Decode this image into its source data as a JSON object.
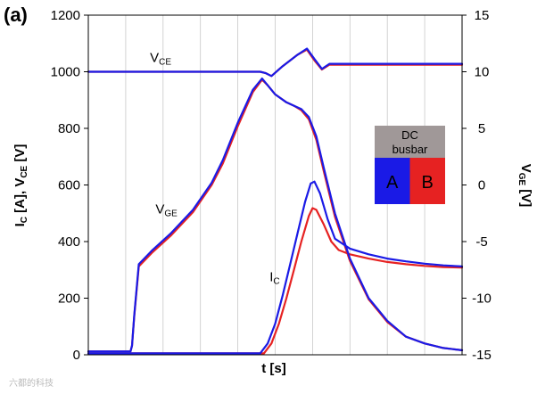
{
  "panel_label": "(a)",
  "watermark": "六都的科技",
  "chart_data": {
    "type": "line",
    "xlabel": "t [s]",
    "ylabel_left": {
      "main": "I",
      "sub1": "C",
      "mid": " [A], V",
      "sub2": "CE",
      "end": " [V]"
    },
    "ylabel_right": {
      "main": "V",
      "sub": "GE",
      "end": " [V]"
    },
    "ylim_left": [
      0,
      1200
    ],
    "ylim_right": [
      -15,
      15
    ],
    "xlim": [
      0,
      100
    ],
    "yticks_left": [
      "0",
      "200",
      "400",
      "600",
      "800",
      "1000",
      "1200"
    ],
    "yticks_right": [
      "-15",
      "-10",
      "-5",
      "0",
      "5",
      "10",
      "15"
    ],
    "grid": "vertical",
    "annotations": [
      {
        "main": "V",
        "sub": "CE",
        "x": 16.5,
        "y": 1035
      },
      {
        "main": "V",
        "sub": "GE",
        "x": 18,
        "y": 500
      },
      {
        "main": "I",
        "sub": "C",
        "x": 48.5,
        "y": 260
      }
    ],
    "legend": {
      "title_line1": "DC",
      "title_line2": "busbar",
      "a": "A",
      "b": "B",
      "position": "right"
    },
    "series": [
      {
        "name": "A",
        "quantity": "VCE",
        "color": "#1a1ae6",
        "x": [
          0,
          46,
          47.5,
          49,
          52,
          56,
          58.5,
          60.5,
          62.5,
          64.5,
          100
        ],
        "y": [
          1000,
          1000,
          995,
          985,
          1020,
          1060,
          1082,
          1045,
          1010,
          1028,
          1028
        ]
      },
      {
        "name": "B",
        "quantity": "VCE",
        "color": "#e62222",
        "x": [
          0,
          46,
          47.5,
          49,
          52,
          56,
          58.5,
          60.5,
          62.5,
          64.5,
          100
        ],
        "y": [
          1000,
          1000,
          995,
          985,
          1020,
          1060,
          1078,
          1040,
          1008,
          1025,
          1025
        ]
      },
      {
        "name": "A",
        "quantity": "VGE",
        "color": "#1a1ae6",
        "x": [
          0,
          11.3,
          11.7,
          12.3,
          13.5,
          17,
          22,
          28,
          33,
          36,
          40,
          44,
          46.5,
          48,
          50,
          53,
          55,
          57,
          59,
          61,
          63,
          66,
          70,
          75,
          80,
          85,
          90,
          95,
          100
        ],
        "y": [
          -14.7,
          -14.7,
          -14.2,
          -11.5,
          -7,
          -5.8,
          -4.3,
          -2.2,
          0.2,
          2.2,
          5.5,
          8.4,
          9.4,
          8.8,
          8.0,
          7.3,
          7.0,
          6.7,
          6.0,
          4.3,
          1.5,
          -2.5,
          -6.5,
          -10.0,
          -12.0,
          -13.4,
          -14.0,
          -14.4,
          -14.6
        ]
      },
      {
        "name": "B",
        "quantity": "VGE",
        "color": "#e62222",
        "x": [
          0,
          11.3,
          11.7,
          12.3,
          13.5,
          17,
          22,
          28,
          33,
          36,
          40,
          44,
          46.5,
          48,
          50,
          53,
          55,
          57,
          59,
          61,
          63,
          66,
          70,
          75,
          80,
          85,
          90,
          95,
          100
        ],
        "y": [
          -14.7,
          -14.7,
          -14.2,
          -11.6,
          -7.2,
          -6.0,
          -4.5,
          -2.4,
          0.0,
          1.9,
          5.2,
          8.2,
          9.3,
          8.8,
          8.0,
          7.3,
          7.0,
          6.6,
          5.8,
          4.0,
          1.2,
          -2.8,
          -6.7,
          -10.1,
          -12.1,
          -13.4,
          -14.0,
          -14.4,
          -14.6
        ]
      },
      {
        "name": "A",
        "quantity": "IC",
        "color": "#1a1ae6",
        "x": [
          0,
          46,
          48,
          50,
          52,
          54,
          56,
          58,
          59.5,
          60.5,
          62,
          64,
          66,
          70,
          75,
          80,
          85,
          90,
          95,
          100
        ],
        "y": [
          5,
          5,
          40,
          110,
          210,
          320,
          430,
          540,
          605,
          612,
          570,
          480,
          410,
          375,
          355,
          340,
          330,
          322,
          316,
          312
        ]
      },
      {
        "name": "B",
        "quantity": "IC",
        "color": "#e62222",
        "x": [
          0,
          47,
          49,
          51,
          53,
          55,
          57,
          59,
          60,
          61,
          63,
          65,
          67,
          70,
          75,
          80,
          85,
          90,
          95,
          100
        ],
        "y": [
          5,
          5,
          40,
          110,
          200,
          300,
          400,
          490,
          518,
          512,
          460,
          400,
          370,
          355,
          340,
          328,
          320,
          314,
          310,
          308
        ]
      }
    ]
  },
  "colors": {
    "blue": "#1a1ae6",
    "red": "#e62222",
    "legend_header": "#a09898",
    "grid": "#c8c8c8"
  }
}
